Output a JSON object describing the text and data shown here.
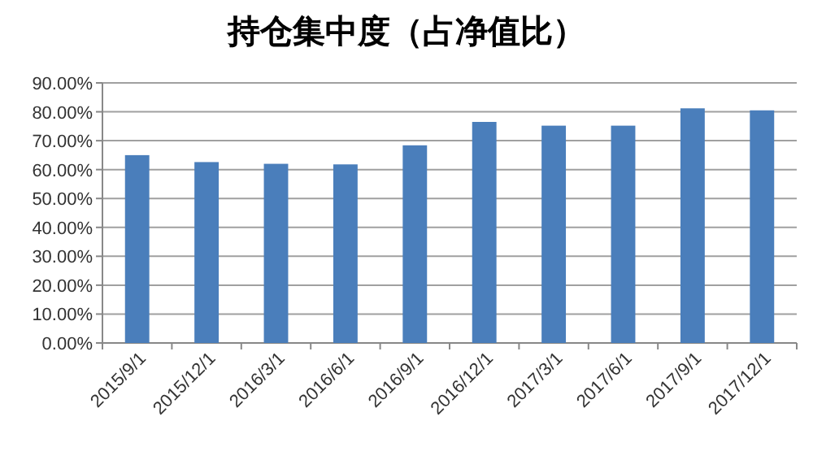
{
  "chart_data": {
    "type": "bar",
    "title": "持仓集中度（占净值比）",
    "categories": [
      "2015/9/1",
      "2015/12/1",
      "2016/3/1",
      "2016/6/1",
      "2016/9/1",
      "2016/12/1",
      "2017/3/1",
      "2017/6/1",
      "2017/9/1",
      "2017/12/1"
    ],
    "values": [
      65.0,
      62.6,
      62.0,
      61.8,
      68.4,
      76.5,
      75.2,
      75.2,
      81.2,
      80.5
    ],
    "color": "#4a7ebb",
    "ylim": [
      0,
      90
    ],
    "yticks": [
      {
        "value": 0,
        "label": "0.00%"
      },
      {
        "value": 10,
        "label": "10.00%"
      },
      {
        "value": 20,
        "label": "20.00%"
      },
      {
        "value": 30,
        "label": "30.00%"
      },
      {
        "value": 40,
        "label": "40.00%"
      },
      {
        "value": 50,
        "label": "50.00%"
      },
      {
        "value": 60,
        "label": "60.00%"
      },
      {
        "value": 70,
        "label": "70.00%"
      },
      {
        "value": 80,
        "label": "80.00%"
      },
      {
        "value": 90,
        "label": "90.00%"
      }
    ],
    "grid": "y"
  }
}
